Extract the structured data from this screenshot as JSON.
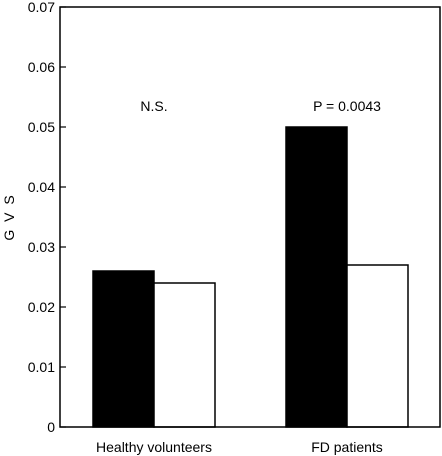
{
  "chart_data": {
    "type": "bar",
    "categories": [
      "Healthy volunteers",
      "FD patients"
    ],
    "series": [
      {
        "values": [
          0.026,
          0.05
        ],
        "color": "#000000"
      },
      {
        "values": [
          0.024,
          0.027
        ],
        "color": "#ffffff"
      }
    ],
    "ylabel": "G V S",
    "ylim": [
      0,
      0.07
    ],
    "yticks": [
      "0",
      "0.01",
      "0.02",
      "0.03",
      "0.04",
      "0.05",
      "0.06",
      "0.07"
    ],
    "annotations": [
      "N.S.",
      "P = 0.0043"
    ],
    "grid": false
  }
}
